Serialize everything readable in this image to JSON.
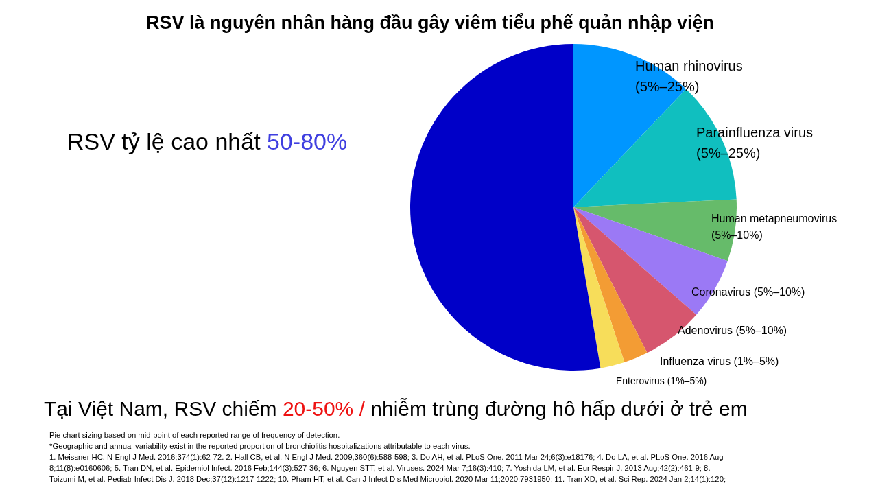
{
  "chart_data": {
    "type": "pie",
    "title": "RSV là nguyên nhân hàng đầu gây viêm tiểu phế quản nhập viện",
    "categories": [
      "Human rhinovirus\n(5%–25%)",
      "Parainfluenza virus\n(5%–25%)",
      "Human metapneumovirus\n(5%–10%)",
      "Coronavirus (5%–10%)",
      "Adenovirus (5%–10%)",
      "Influenza virus (1%–5%)",
      "Enterovirus (1%–5%)",
      null
    ],
    "values": [
      12.1,
      12.1,
      6.1,
      6.1,
      6.1,
      2.4,
      2.4,
      52.6
    ],
    "colors": [
      "#0096ff",
      "#10bfbf",
      "#66bb6a",
      "#9b79f5",
      "#d6566e",
      "#f39c34",
      "#f7dd5a",
      "#0000c8"
    ],
    "annotations": [
      "RSV tỷ lệ cao nhất ",
      "50-80%",
      "Tại Việt Nam, RSV chiếm ",
      "20-50% /",
      " nhiễm trùng đường hô hấp dưới ở trẻ em",
      "Pie chart sizing based on mid-point of each reported range of frequency of detection.",
      "*Geographic and annual variability exist in the reported proportion of bronchiolitis hospitalizations attributable to each virus.",
      "1. Meissner HC. N Engl J Med. 2016;374(1):62-72. 2. Hall CB, et al. N Engl J Med. 2009,360(6):588-598; 3. Do AH, et al. PLoS One. 2011 Mar 24;6(3):e18176; 4. Do LA, et al. PLoS One. 2016 Aug",
      "8;11(8):e0160606; 5. Tran DN, et al. Epidemiol Infect. 2016 Feb;144(3):527-36; 6. Nguyen STT, et al. Viruses. 2024 Mar 7;16(3):410; 7. Yoshida LM, et al. Eur Respir J. 2013 Aug;42(2):461-9; 8.",
      "Toizumi M, et al. Pediatr Infect Dis J. 2018 Dec;37(12):1217-1222;  10. Pham HT, et al. Can J Infect Dis Med Microbiol. 2020 Mar 11;2020:7931950;  11. Tran XD, et al. Sci Rep. 2024 Jan 2;14(1):120;"
    ]
  }
}
